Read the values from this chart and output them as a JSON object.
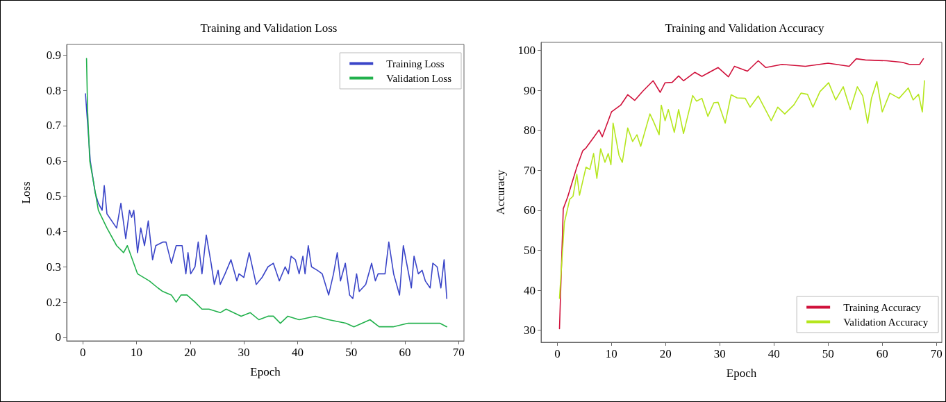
{
  "chart_data": [
    {
      "type": "line",
      "title": "Training and Validation Loss",
      "xlabel": "Epoch",
      "ylabel": "Loss",
      "xlim": [
        -3,
        71
      ],
      "xticks": [
        0,
        10,
        20,
        30,
        40,
        50,
        60,
        70
      ],
      "ylim": [
        0.09,
        0.93
      ],
      "yticks": [
        {
          "value": 0.1,
          "label": "0"
        },
        0.2,
        0.3,
        0.4,
        0.5,
        0.6,
        0.7,
        0.8,
        0.9
      ],
      "grid": false,
      "legend": "top right",
      "marker": "none",
      "line_style": "solid",
      "series": [
        {
          "name": "Training Loss",
          "color": "#3a45c8",
          "x": [
            0.5,
            1.4,
            2.3,
            2.9,
            3.6,
            4,
            4.5,
            6.3,
            7.1,
            8,
            8.7,
            9.1,
            9.5,
            10.2,
            10.8,
            11.5,
            12.2,
            13,
            13.6,
            14.9,
            15.5,
            16.5,
            17.4,
            18.5,
            19.2,
            19.6,
            20.1,
            20.9,
            21.5,
            22.2,
            23,
            23.9,
            24.5,
            25.2,
            25.6,
            26.5,
            27.6,
            28.7,
            29.1,
            30,
            31,
            32.3,
            33.4,
            34.5,
            35.5,
            36.6,
            37.7,
            38.3,
            38.8,
            39.6,
            40.3,
            41,
            41.4,
            42,
            42.6,
            43.7,
            44.6,
            45.8,
            46.7,
            47.4,
            48,
            48.9,
            49.7,
            50.3,
            51,
            51.5,
            52.7,
            53.8,
            54.5,
            55,
            56.3,
            57,
            57.9,
            59,
            59.7,
            61.2,
            61.7,
            62.5,
            63.2,
            63.8,
            64.7,
            65.2,
            66,
            66.7,
            67.3,
            67.8
          ],
          "values": [
            0.79,
            0.6,
            0.51,
            0.48,
            0.46,
            0.53,
            0.45,
            0.41,
            0.48,
            0.38,
            0.46,
            0.44,
            0.46,
            0.34,
            0.41,
            0.36,
            0.43,
            0.32,
            0.36,
            0.37,
            0.37,
            0.31,
            0.36,
            0.36,
            0.28,
            0.34,
            0.28,
            0.3,
            0.37,
            0.28,
            0.39,
            0.31,
            0.25,
            0.29,
            0.25,
            0.28,
            0.32,
            0.26,
            0.28,
            0.27,
            0.34,
            0.25,
            0.27,
            0.3,
            0.31,
            0.26,
            0.3,
            0.28,
            0.33,
            0.32,
            0.28,
            0.33,
            0.28,
            0.36,
            0.3,
            0.29,
            0.28,
            0.22,
            0.28,
            0.34,
            0.26,
            0.31,
            0.22,
            0.21,
            0.28,
            0.23,
            0.25,
            0.31,
            0.26,
            0.28,
            0.28,
            0.37,
            0.28,
            0.22,
            0.36,
            0.24,
            0.33,
            0.28,
            0.29,
            0.26,
            0.24,
            0.31,
            0.3,
            0.24,
            0.32,
            0.21
          ]
        },
        {
          "name": "Validation Loss",
          "color": "#22b14c",
          "x": [
            0.7,
            0.9,
            1.3,
            2,
            2.9,
            4.5,
            6.3,
            7.6,
            8.3,
            10.2,
            12.4,
            14,
            14.9,
            16.5,
            17.4,
            18.3,
            19.4,
            20.9,
            22.2,
            23.5,
            25.6,
            26.7,
            29.5,
            31.2,
            32.8,
            34.5,
            35.5,
            36.8,
            38.2,
            40.3,
            43.3,
            45.8,
            49,
            50.5,
            53.5,
            55.2,
            57.8,
            60.6,
            63,
            66.5,
            67.8
          ],
          "values": [
            0.89,
            0.74,
            0.6,
            0.54,
            0.46,
            0.41,
            0.36,
            0.34,
            0.36,
            0.28,
            0.26,
            0.24,
            0.23,
            0.22,
            0.2,
            0.22,
            0.22,
            0.2,
            0.18,
            0.18,
            0.17,
            0.18,
            0.16,
            0.17,
            0.15,
            0.16,
            0.16,
            0.14,
            0.16,
            0.15,
            0.16,
            0.15,
            0.14,
            0.13,
            0.15,
            0.13,
            0.13,
            0.14,
            0.14,
            0.14,
            0.13
          ]
        }
      ]
    },
    {
      "type": "line",
      "title": "Training and Validation Accuracy",
      "xlabel": "Epoch",
      "ylabel": "Accuracy",
      "xlim": [
        -3,
        71
      ],
      "xticks": [
        0,
        10,
        20,
        30,
        40,
        50,
        60,
        70
      ],
      "ylim": [
        27,
        102
      ],
      "yticks": [
        30,
        40,
        50,
        60,
        70,
        80,
        90,
        100
      ],
      "grid": false,
      "legend": "bottom right",
      "marker": "none",
      "line_style": "solid",
      "series": [
        {
          "name": "Training Accuracy",
          "color": "#d0103a",
          "x": [
            0.4,
            1.1,
            1.9,
            3.6,
            4.7,
            5.3,
            6.8,
            7.7,
            8.3,
            10,
            11.7,
            13,
            14.3,
            15.8,
            17.7,
            19,
            19.9,
            21.2,
            22.4,
            23.3,
            25.4,
            26.7,
            29.7,
            31.6,
            32.7,
            35.1,
            37.1,
            38.5,
            41.5,
            45.8,
            50,
            53.9,
            55.2,
            56.9,
            60.8,
            63.7,
            65,
            66.9,
            67.6
          ],
          "values": [
            30.4,
            60.4,
            63.3,
            70.8,
            74.9,
            75.6,
            78.4,
            80.1,
            78.4,
            84.6,
            86.3,
            88.9,
            87.5,
            89.8,
            92.4,
            89.5,
            91.9,
            92,
            93.6,
            92.4,
            94.5,
            93.5,
            95.7,
            93.4,
            96,
            94.8,
            97.4,
            95.7,
            96.5,
            96,
            96.8,
            96,
            97.9,
            97.6,
            97.4,
            97,
            96.5,
            96.5,
            97.9
          ]
        },
        {
          "name": "Validation Accuracy",
          "color": "#b5e61d",
          "x": [
            0.4,
            1.3,
            2.3,
            2.9,
            3.6,
            4.1,
            5.3,
            6,
            6.7,
            7.3,
            8,
            8.8,
            9.4,
            9.9,
            10.3,
            11.4,
            12,
            13,
            13.9,
            14.7,
            15.4,
            17.1,
            17.7,
            18.8,
            19.2,
            19.9,
            20.5,
            21.6,
            22.4,
            23.3,
            25,
            25.7,
            26.7,
            27.8,
            28.9,
            29.7,
            31,
            32.1,
            33.2,
            34.7,
            35.6,
            37.1,
            39.5,
            40.7,
            42,
            43.7,
            45,
            46.2,
            47.2,
            48.5,
            50.1,
            51.4,
            52.8,
            54.1,
            55.4,
            56.4,
            57.3,
            58,
            59,
            60,
            61.4,
            63.1,
            64.8,
            65.7,
            66.7,
            67.4,
            67.8
          ],
          "values": [
            38,
            56.9,
            62.8,
            63.5,
            69,
            63.8,
            70.8,
            70.2,
            74.2,
            68,
            75.4,
            72,
            74.2,
            71.4,
            81.8,
            73.7,
            72,
            80.6,
            77.2,
            78.9,
            76,
            84.1,
            82.4,
            78.9,
            86.3,
            82.4,
            85.2,
            79.5,
            85.2,
            79.2,
            88.7,
            87.3,
            88,
            83.5,
            86.9,
            87,
            81.8,
            88.9,
            88.1,
            88,
            85.8,
            88.6,
            82.4,
            85.8,
            84.1,
            86.4,
            89.3,
            89,
            85.8,
            89.7,
            91.9,
            87.6,
            90.9,
            85.2,
            90.9,
            88.6,
            81.8,
            88,
            92.2,
            84.6,
            89.3,
            88,
            90.6,
            87.6,
            89,
            84.6,
            92.4
          ]
        }
      ]
    }
  ]
}
